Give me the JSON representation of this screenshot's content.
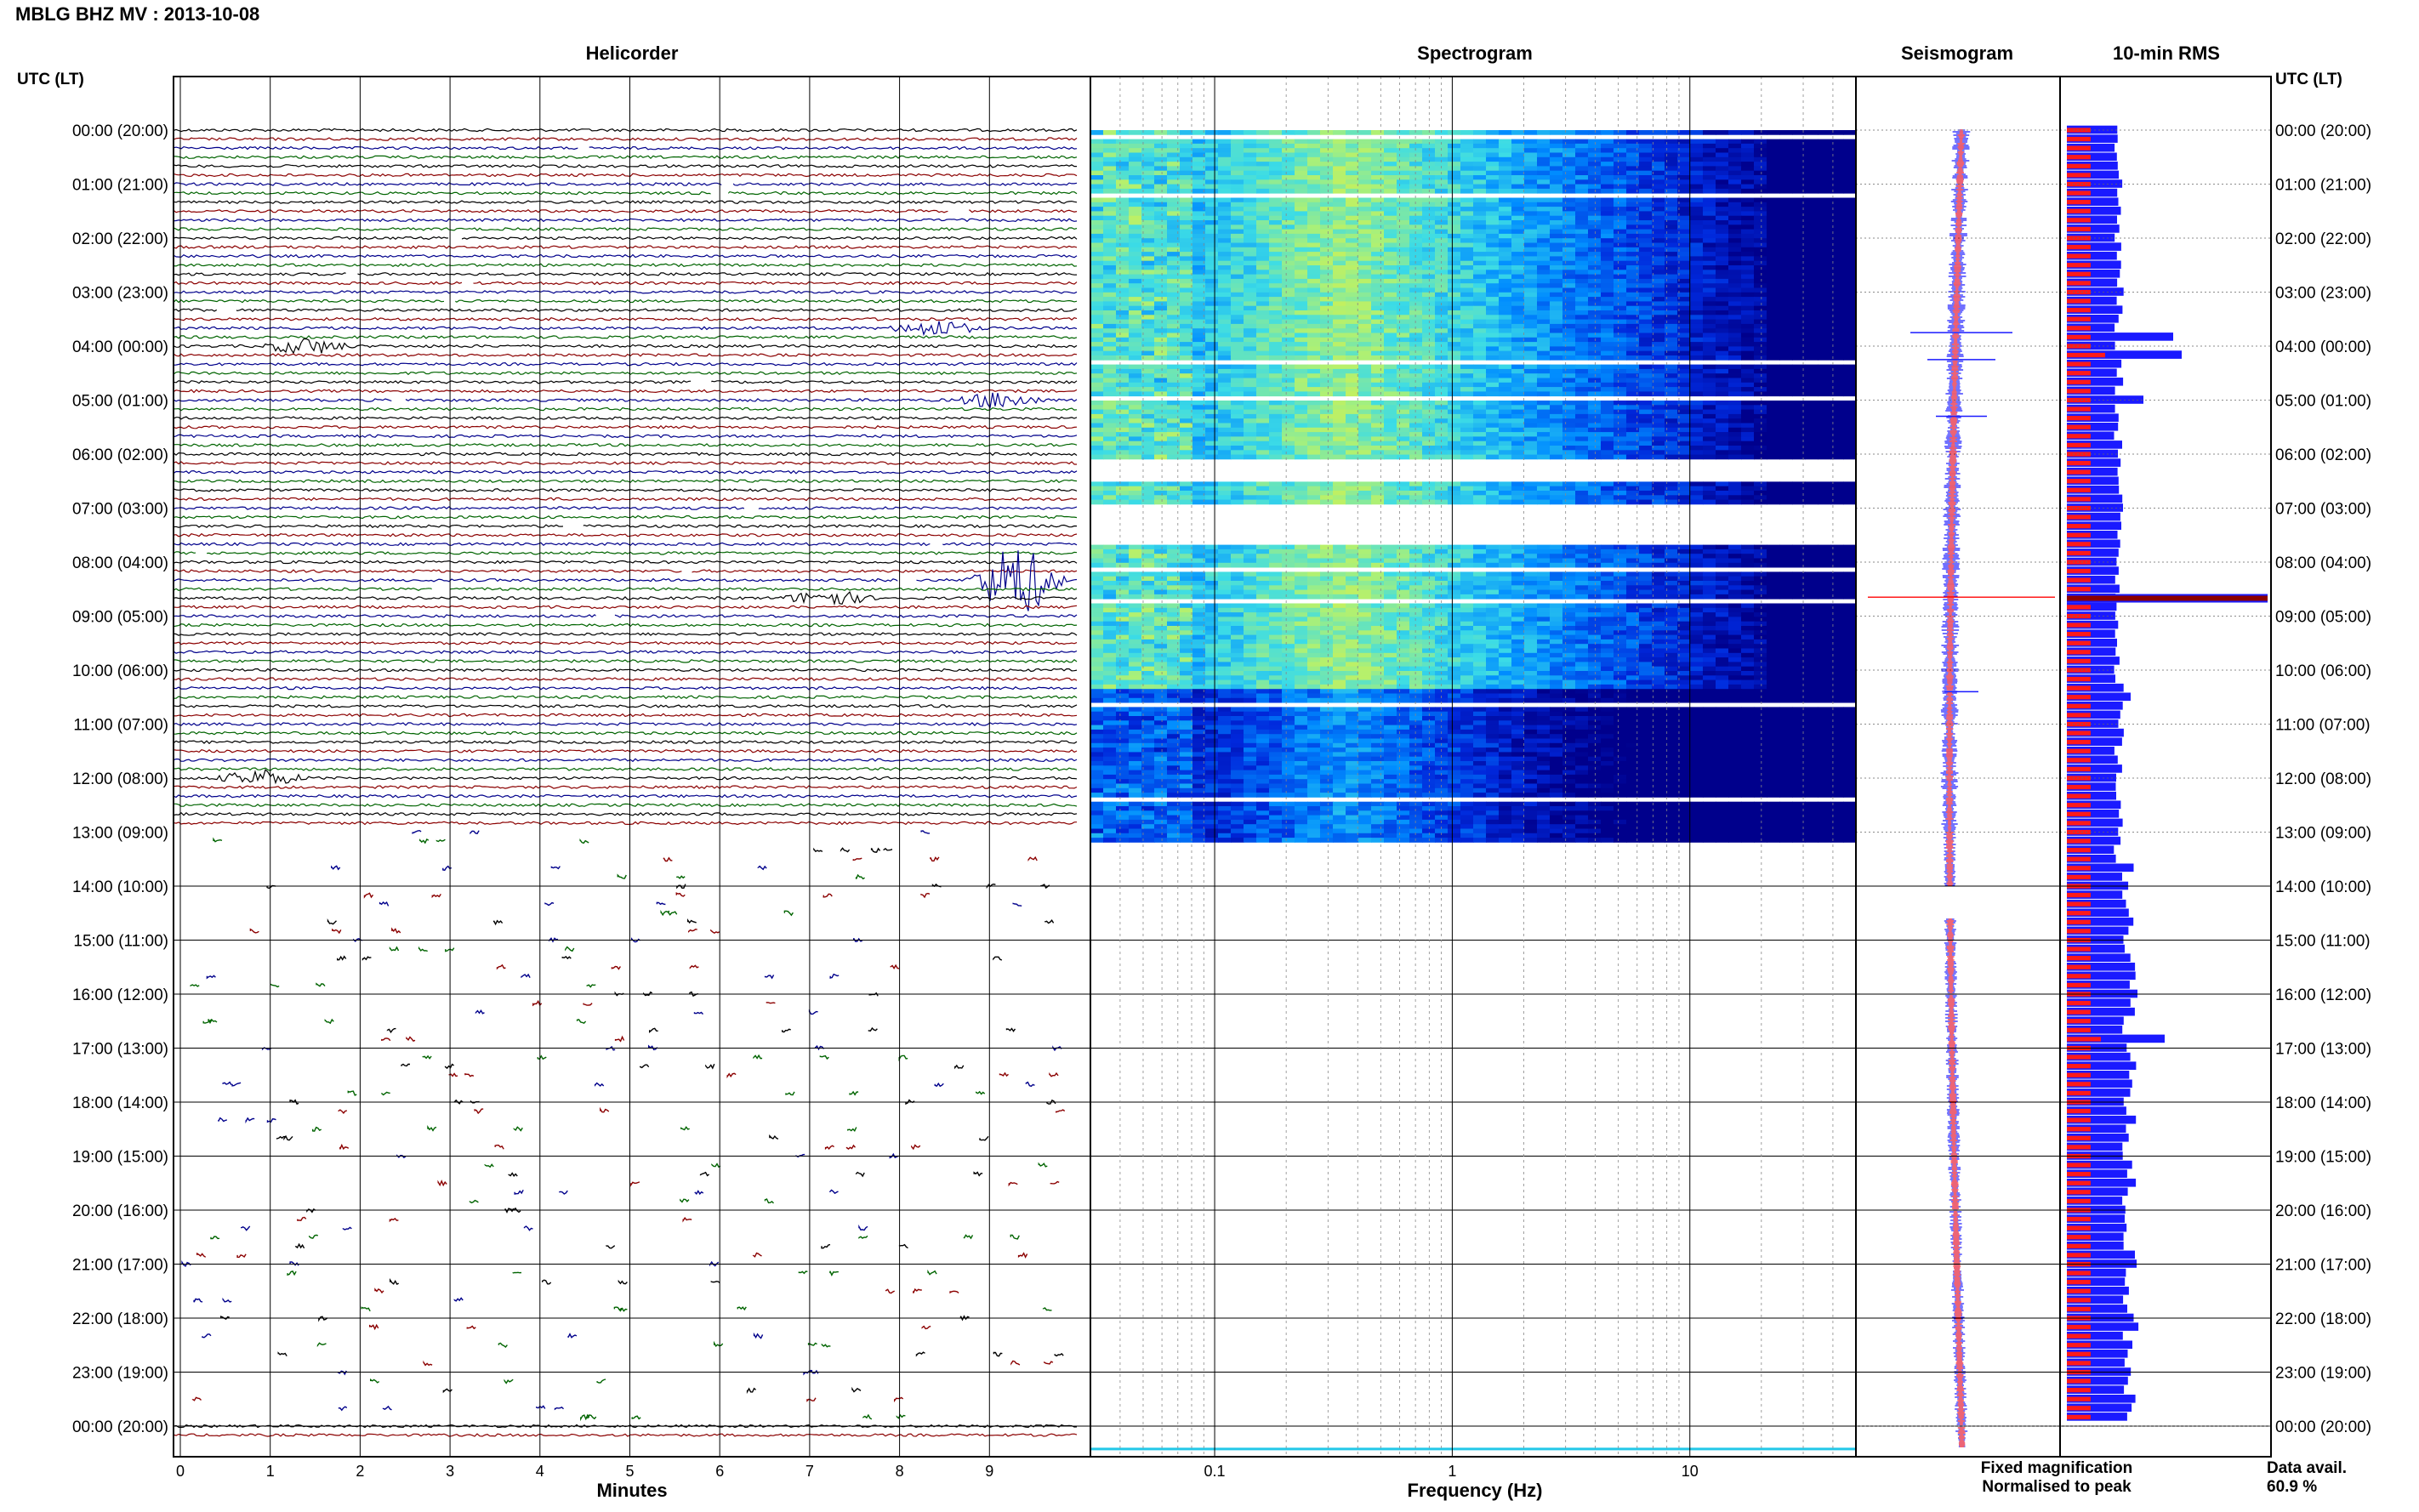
{
  "title": "MBLG BHZ MV : 2013-10-08",
  "panels": {
    "helicorder": "Helicorder",
    "spectrogram": "Spectrogram",
    "seismogram": "Seismogram",
    "rms": "10-min RMS"
  },
  "time_axis_label": "UTC (LT)",
  "time_labels": [
    "00:00 (20:00)",
    "01:00 (21:00)",
    "02:00 (22:00)",
    "03:00 (23:00)",
    "04:00 (00:00)",
    "05:00 (01:00)",
    "06:00 (02:00)",
    "07:00 (03:00)",
    "08:00 (04:00)",
    "09:00 (05:00)",
    "10:00 (06:00)",
    "11:00 (07:00)",
    "12:00 (08:00)",
    "13:00 (09:00)",
    "14:00 (10:00)",
    "15:00 (11:00)",
    "16:00 (12:00)",
    "17:00 (13:00)",
    "18:00 (14:00)",
    "19:00 (15:00)",
    "20:00 (16:00)",
    "21:00 (17:00)",
    "22:00 (18:00)",
    "23:00 (19:00)",
    "00:00 (20:00)"
  ],
  "minutes_ticks": [
    "0",
    "1",
    "2",
    "3",
    "4",
    "5",
    "6",
    "7",
    "8",
    "9"
  ],
  "minutes_label": "Minutes",
  "freq_ticks": [
    "0.1",
    "1",
    "10"
  ],
  "freq_label": "Frequency (Hz)",
  "legend": {
    "fixed": "Fixed magnification",
    "normalised": "Normalised to peak",
    "fixed_color": "#1a1aff",
    "normalised_color": "#ff1a1a"
  },
  "availability": {
    "label": "Data avail.",
    "value": "60.9 %"
  },
  "trace_colors": [
    "#000000",
    "#8b0000",
    "#00008b",
    "#006400"
  ],
  "chart_data": {
    "type": "helicorder",
    "station": "MBLG",
    "channel": "BHZ",
    "network": "MV",
    "date": "2013-10-08",
    "hours": 24,
    "minutes_per_line": 10,
    "continuous_data_until_utc": "13:00",
    "events": [
      {
        "utc": "03:40",
        "minute": 8.4,
        "note": "burst"
      },
      {
        "utc": "04:00",
        "minute": 1.4,
        "note": "burst"
      },
      {
        "utc": "05:00",
        "minute": 9.1,
        "note": "burst"
      },
      {
        "utc": "08:20",
        "minute": 9.3,
        "note": "large event"
      },
      {
        "utc": "08:40",
        "minute": 7.2,
        "note": "burst"
      },
      {
        "utc": "12:00",
        "minute": 0.9,
        "note": "burst"
      }
    ],
    "spectrogram_freq_range_hz": [
      0.03,
      50
    ],
    "rms_peak_utc": "08:40"
  }
}
